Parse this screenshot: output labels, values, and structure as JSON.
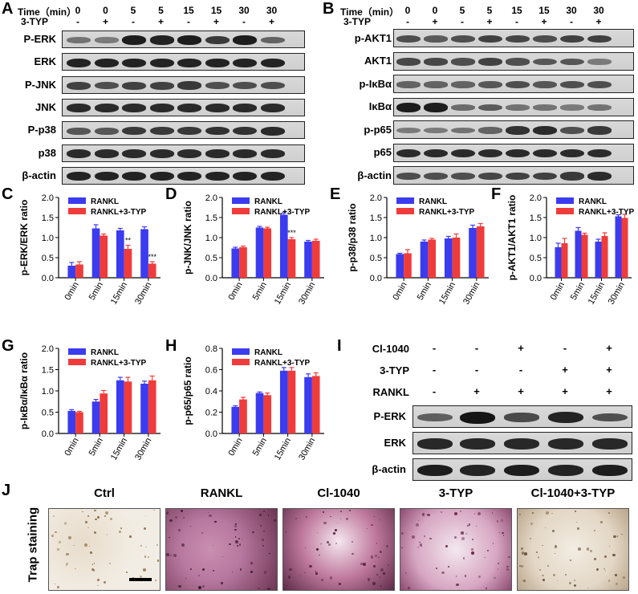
{
  "panels": {
    "A": "A",
    "B": "B",
    "C": "C",
    "D": "D",
    "E": "E",
    "F": "F",
    "G": "G",
    "H": "H",
    "I": "I",
    "J": "J"
  },
  "timecourse": {
    "time_label": "Time（min）",
    "typ_label": "3-TYP",
    "times": [
      "0",
      "0",
      "5",
      "5",
      "15",
      "15",
      "30",
      "30"
    ],
    "typ": [
      "-",
      "+",
      "-",
      "+",
      "-",
      "+",
      "-",
      "+"
    ]
  },
  "blots_A": [
    "P-ERK",
    "ERK",
    "P-JNK",
    "JNK",
    "P-p38",
    "p38",
    "β-actin"
  ],
  "blots_B": [
    "p-AKT1",
    "AKT1",
    "p-IκBα",
    "IκBα",
    "p-p65",
    "p65",
    "β-actin"
  ],
  "blot_I": {
    "rows": [
      {
        "label": "Cl-1040",
        "signs": [
          "-",
          "-",
          "+",
          "-",
          "+"
        ]
      },
      {
        "label": "3-TYP",
        "signs": [
          "-",
          "-",
          "-",
          "+",
          "+"
        ]
      },
      {
        "label": "RANKL",
        "signs": [
          "-",
          "+",
          "+",
          "+",
          "+"
        ]
      }
    ],
    "blots": [
      "P-ERK",
      "ERK",
      "β-actin"
    ]
  },
  "trap": {
    "row_label": "Trap staining",
    "titles": [
      "Ctrl",
      "RANKL",
      "Cl-1040",
      "3-TYP",
      "Cl-1040+3-TYP"
    ]
  },
  "colors": {
    "rankl": "#3b3bf0",
    "typ": "#f03b3b"
  },
  "chart_data": [
    {
      "panel": "C",
      "type": "bar",
      "ylabel": "p-ERK/ERK ratio",
      "categories": [
        "0min",
        "5min",
        "15min",
        "30min"
      ],
      "yticks": [
        "0.0",
        "0.5",
        "1.0",
        "1.5",
        "2.0"
      ],
      "ylim": [
        0,
        2
      ],
      "series": [
        {
          "name": "RANKL",
          "values": [
            0.3,
            1.23,
            1.18,
            1.21
          ],
          "errors": [
            0.08,
            0.09,
            0.05,
            0.06
          ]
        },
        {
          "name": "RANKL+3-TYP",
          "values": [
            0.33,
            1.05,
            0.72,
            0.35
          ],
          "errors": [
            0.07,
            0.04,
            0.09,
            0.05
          ]
        }
      ],
      "annotations": [
        "",
        "",
        "**",
        "***"
      ]
    },
    {
      "panel": "D",
      "type": "bar",
      "ylabel": "p-JNK/JNK ratio",
      "categories": [
        "0min",
        "5min",
        "15min",
        "30min"
      ],
      "yticks": [
        "0.0",
        "0.5",
        "1.0",
        "1.5",
        "2.0"
      ],
      "ylim": [
        0,
        2
      ],
      "series": [
        {
          "name": "RANKL",
          "values": [
            0.73,
            1.25,
            1.57,
            0.9
          ],
          "errors": [
            0.03,
            0.03,
            0.05,
            0.03
          ]
        },
        {
          "name": "RANKL+3-TYP",
          "values": [
            0.76,
            1.23,
            0.96,
            0.92
          ],
          "errors": [
            0.03,
            0.03,
            0.04,
            0.04
          ]
        }
      ],
      "annotations": [
        "",
        "",
        "***",
        ""
      ]
    },
    {
      "panel": "E",
      "type": "bar",
      "ylabel": "p-p38/p38 ratio",
      "categories": [
        "0min",
        "5min",
        "15min",
        "30min"
      ],
      "yticks": [
        "0.0",
        "0.5",
        "1.0",
        "1.5",
        "2.0"
      ],
      "ylim": [
        0,
        2
      ],
      "series": [
        {
          "name": "RANKL",
          "values": [
            0.59,
            0.9,
            0.98,
            1.24
          ],
          "errors": [
            0.02,
            0.04,
            0.05,
            0.07
          ]
        },
        {
          "name": "RANKL+3-TYP",
          "values": [
            0.61,
            0.95,
            1.0,
            1.28
          ],
          "errors": [
            0.09,
            0.03,
            0.09,
            0.07
          ]
        }
      ],
      "annotations": [
        "",
        "",
        "",
        ""
      ]
    },
    {
      "panel": "F",
      "type": "bar",
      "ylabel": "p-AKT1/AKT1 ratio",
      "categories": [
        "0min",
        "5min",
        "15min",
        "30min"
      ],
      "yticks": [
        "0.0",
        "0.5",
        "1.0",
        "1.5",
        "2.0"
      ],
      "ylim": [
        0,
        2
      ],
      "series": [
        {
          "name": "RANKL",
          "values": [
            0.76,
            1.17,
            0.9,
            1.53
          ],
          "errors": [
            0.1,
            0.08,
            0.06,
            0.04
          ]
        },
        {
          "name": "RANKL+3-TYP",
          "values": [
            0.86,
            1.07,
            1.04,
            1.49
          ],
          "errors": [
            0.12,
            0.04,
            0.08,
            0.09
          ]
        }
      ],
      "annotations": [
        "",
        "",
        "",
        ""
      ]
    },
    {
      "panel": "G",
      "type": "bar",
      "ylabel": "p-IκBα/IκBα ratio",
      "categories": [
        "0min",
        "5min",
        "15min",
        "30min"
      ],
      "yticks": [
        "0.0",
        "0.5",
        "1.0",
        "1.5",
        "2.0"
      ],
      "ylim": [
        0,
        2
      ],
      "series": [
        {
          "name": "RANKL",
          "values": [
            0.53,
            0.75,
            1.25,
            1.17
          ],
          "errors": [
            0.03,
            0.05,
            0.07,
            0.06
          ]
        },
        {
          "name": "RANKL+3-TYP",
          "values": [
            0.5,
            0.94,
            1.22,
            1.25
          ],
          "errors": [
            0.02,
            0.07,
            0.1,
            0.1
          ]
        }
      ],
      "annotations": [
        "",
        "",
        "",
        ""
      ]
    },
    {
      "panel": "H",
      "type": "bar",
      "ylabel": "p-p65/p65 ratio",
      "categories": [
        "0min",
        "5min",
        "15min",
        "30min"
      ],
      "yticks": [
        "0.0",
        "0.2",
        "0.4",
        "0.6",
        "0.8"
      ],
      "ylim": [
        0,
        0.8
      ],
      "series": [
        {
          "name": "RANKL",
          "values": [
            0.25,
            0.38,
            0.59,
            0.53
          ],
          "errors": [
            0.01,
            0.01,
            0.03,
            0.03
          ]
        },
        {
          "name": "RANKL+3-TYP",
          "values": [
            0.32,
            0.36,
            0.59,
            0.54
          ],
          "errors": [
            0.02,
            0.02,
            0.03,
            0.03
          ]
        }
      ],
      "annotations": [
        "",
        "",
        "",
        ""
      ]
    }
  ]
}
